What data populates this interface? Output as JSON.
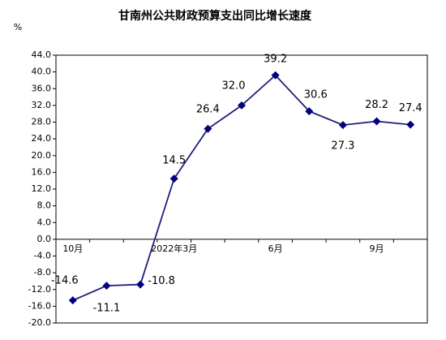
{
  "chart_data": {
    "type": "line",
    "title": "甘南州公共财政预算支出同比增长速度",
    "y_unit": "%",
    "categories": [
      "10月",
      null,
      null,
      "2022年3月",
      null,
      null,
      "6月",
      null,
      null,
      "9月",
      null
    ],
    "series": [
      {
        "name": "同比增长速度",
        "color": "#1f1f7a",
        "values": [
          -14.6,
          -11.1,
          -10.8,
          14.5,
          26.4,
          32.0,
          39.2,
          30.6,
          27.3,
          28.2,
          27.4
        ],
        "value_labels": [
          "-14.6",
          "-11.1",
          "-10.8",
          "14.5",
          "26.4",
          "32.0",
          "39.2",
          "30.6",
          "27.3",
          "28.2",
          "27.4"
        ]
      }
    ],
    "ylim": [
      -20,
      44
    ],
    "yticks": [
      {
        "value": -20,
        "label": "-20.0"
      },
      {
        "value": -16,
        "label": "-16.0"
      },
      {
        "value": -12,
        "label": "-12.0"
      },
      {
        "value": -8,
        "label": "-8.0"
      },
      {
        "value": -4,
        "label": "-4.0"
      },
      {
        "value": 0,
        "label": "0.0"
      },
      {
        "value": 4,
        "label": "4.0"
      },
      {
        "value": 8,
        "label": "8.0"
      },
      {
        "value": 12,
        "label": "12.0"
      },
      {
        "value": 16,
        "label": "16.0"
      },
      {
        "value": 20,
        "label": "20.0"
      },
      {
        "value": 24,
        "label": "24.0"
      },
      {
        "value": 28,
        "label": "28.0"
      },
      {
        "value": 32,
        "label": "32.0"
      },
      {
        "value": 36,
        "label": "36.0"
      },
      {
        "value": 40,
        "label": "40.0"
      },
      {
        "value": 44,
        "label": "44.0"
      }
    ],
    "grid": false
  }
}
